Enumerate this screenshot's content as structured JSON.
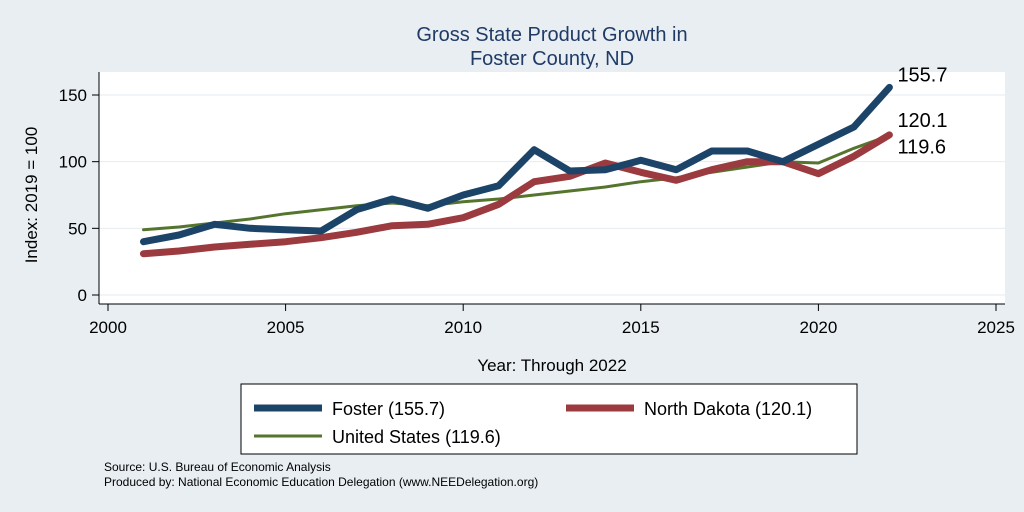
{
  "chart_data": {
    "type": "line",
    "title": [
      "Gross State Product Growth in",
      "Foster County, ND"
    ],
    "xlabel": "Year: Through 2022",
    "ylabel": "Index: 2019 = 100",
    "xlim": [
      2000,
      2025
    ],
    "ylim": [
      0,
      160
    ],
    "xticks": [
      2000,
      2005,
      2010,
      2015,
      2020,
      2025
    ],
    "yticks": [
      0,
      50,
      100,
      150
    ],
    "grid": true,
    "x": [
      2001,
      2002,
      2003,
      2004,
      2005,
      2006,
      2007,
      2008,
      2009,
      2010,
      2011,
      2012,
      2013,
      2014,
      2015,
      2016,
      2017,
      2018,
      2019,
      2020,
      2021,
      2022
    ],
    "series": [
      {
        "name": "United States",
        "legend_label": "United States (119.6)",
        "end_label": "119.6",
        "color": "#55752f",
        "values": [
          49,
          51,
          54,
          57,
          61,
          64,
          67,
          69,
          67,
          70,
          72,
          75,
          78,
          81,
          85,
          88,
          92,
          96,
          100,
          99,
          110,
          119.6
        ]
      },
      {
        "name": "North Dakota",
        "legend_label": "North Dakota (120.1)",
        "end_label": "120.1",
        "color": "#9b3a3f",
        "values": [
          31,
          33,
          36,
          38,
          40,
          43,
          47,
          52,
          53,
          58,
          68,
          85,
          89,
          99,
          92,
          86,
          94,
          100,
          100,
          91,
          104,
          120.1
        ]
      },
      {
        "name": "Foster",
        "legend_label": "Foster  (155.7)",
        "end_label": "155.7",
        "color": "#1b4468",
        "values": [
          40,
          45,
          53,
          50,
          49,
          48,
          64,
          72,
          65,
          75,
          82,
          109,
          93,
          94,
          101,
          94,
          108,
          108,
          100,
          113,
          126,
          155.7
        ]
      }
    ],
    "legend": {
      "placement": "bottom",
      "order": [
        "Foster",
        "North Dakota",
        "United States"
      ]
    }
  },
  "footnotes": {
    "source": "Source: U.S. Bureau of Economic Analysis",
    "produced_by": "Produced by: National Economic Education Delegation (www.NEEDelegation.org)"
  }
}
